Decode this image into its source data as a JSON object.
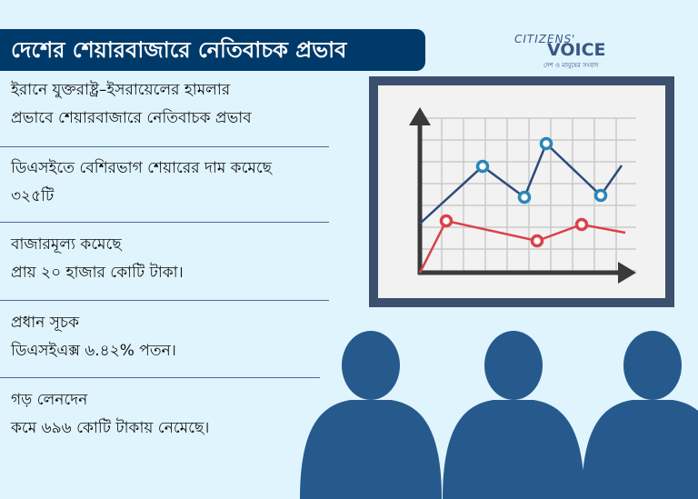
{
  "title": "দেশের শেয়ারবাজারে নেতিবাচক প্রভাব",
  "logo": {
    "line1": "CITIZENS'",
    "line2": "VOICE",
    "tagline": "দেশ ও মানুষের সংবাদ"
  },
  "facts": [
    {
      "line1": "ইরানে যুক্তরাষ্ট্র–ইসরায়েলের হামলার",
      "line2": "প্রভাবে শেয়ারবাজারে নেতিবাচক প্রভাব"
    },
    {
      "line1": "ডিএসইতে বেশিরভাগ শেয়ারের দাম কমেছে",
      "line2": "৩২৫টি"
    },
    {
      "line1": "বাজারমূল্য কমেছে",
      "line2": "প্রায় ২০ হাজার কোটি টাকা।"
    },
    {
      "line1": "প্রধান সূচক",
      "line2": "ডিএসইএক্স ৬.৪২% পতন।"
    },
    {
      "line1": "গড় লেনদেন",
      "line2": "কমে ৬৯৬ কোটি টাকায় নেমেছে।"
    }
  ],
  "colors": {
    "title_bg": "#003a6b",
    "background": "#dff4fd",
    "board_frame": "#3d4f6e",
    "blue_line": "#2e4a7c",
    "red_line": "#d9424a",
    "audience": "#275a8c"
  }
}
